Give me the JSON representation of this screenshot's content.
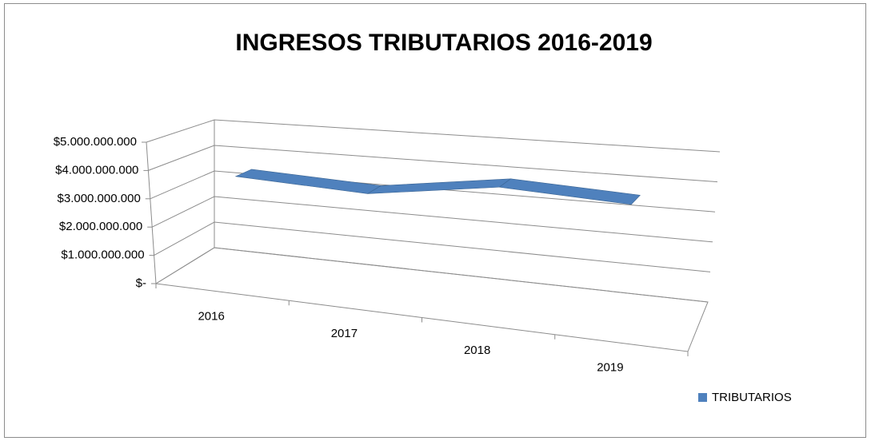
{
  "chart_data": {
    "type": "line",
    "title": "INGRESOS TRIBUTARIOS 2016-2019",
    "categories": [
      "2016",
      "2017",
      "2018",
      "2019"
    ],
    "series": [
      {
        "name": "TRIBUTARIOS",
        "color": "#4f81bd",
        "values": [
          3700000000,
          3500000000,
          4100000000,
          3900000000
        ]
      }
    ],
    "ylim": [
      0,
      5000000000
    ],
    "yticks": [
      {
        "value": 0,
        "label": "$-"
      },
      {
        "value": 1000000000,
        "label": "$1.000.000.000"
      },
      {
        "value": 2000000000,
        "label": "$2.000.000.000"
      },
      {
        "value": 3000000000,
        "label": "$3.000.000.000"
      },
      {
        "value": 4000000000,
        "label": "$4.000.000.000"
      },
      {
        "value": 5000000000,
        "label": "$5.000.000.000"
      }
    ],
    "grid": true,
    "legend": "right"
  }
}
